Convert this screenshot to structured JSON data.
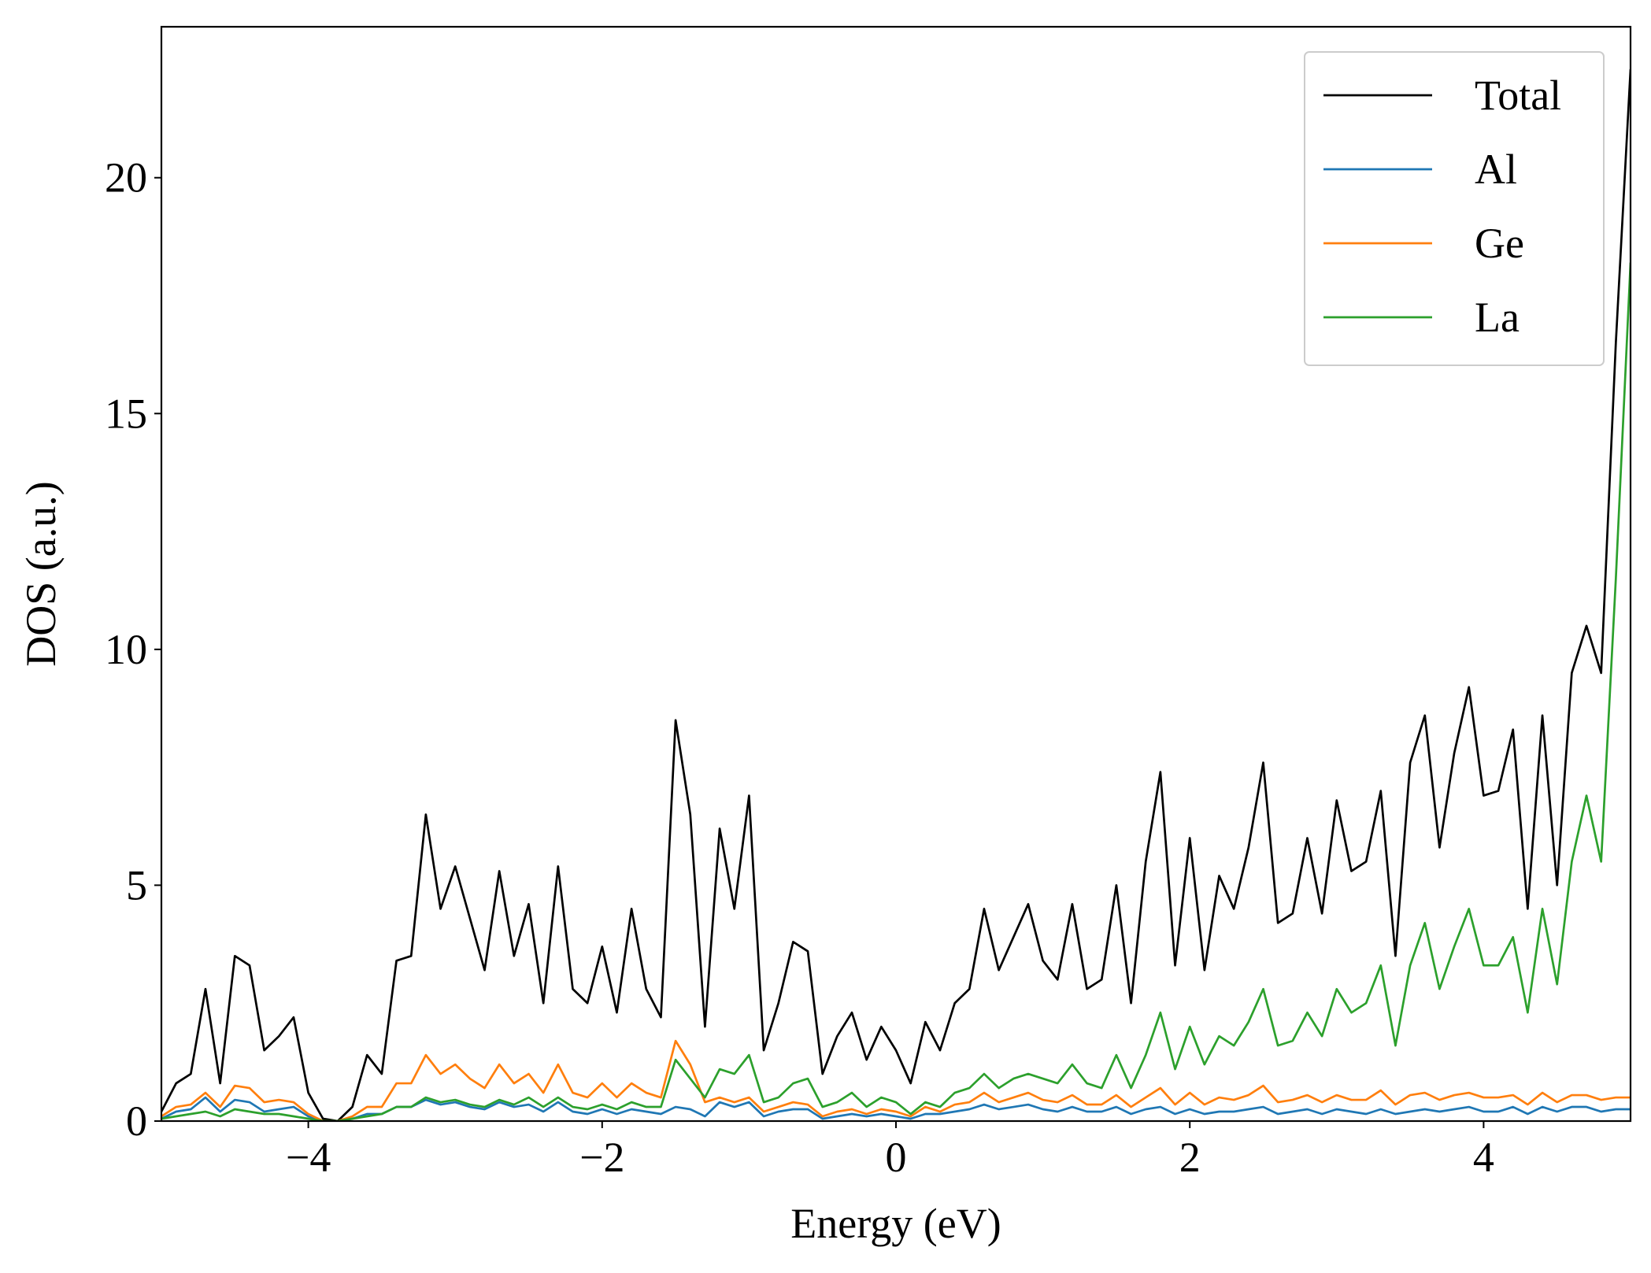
{
  "chart_data": {
    "type": "line",
    "xlabel": "Energy (eV)",
    "ylabel": "DOS (a.u.)",
    "xlim": [
      -5,
      5
    ],
    "ylim": [
      0,
      23.2
    ],
    "xticks": [
      {
        "value": -4,
        "label": "−4"
      },
      {
        "value": -2,
        "label": "−2"
      },
      0,
      2,
      4
    ],
    "yticks": [
      0,
      5,
      10,
      15,
      20
    ],
    "legend": "upper right",
    "grid": false,
    "x": [
      -5,
      -4.9,
      -4.8,
      -4.7,
      -4.6,
      -4.5,
      -4.4,
      -4.3,
      -4.2,
      -4.1,
      -4,
      -3.9,
      -3.8,
      -3.7,
      -3.6,
      -3.5,
      -3.4,
      -3.3,
      -3.2,
      -3.1,
      -3,
      -2.9,
      -2.8,
      -2.7,
      -2.6,
      -2.5,
      -2.4,
      -2.3,
      -2.2,
      -2.1,
      -2,
      -1.9,
      -1.8,
      -1.7,
      -1.6,
      -1.5,
      -1.4,
      -1.3,
      -1.2,
      -1.1,
      -1,
      -0.9,
      -0.8,
      -0.7,
      -0.6,
      -0.5,
      -0.4,
      -0.3,
      -0.2,
      -0.1,
      0,
      0.1,
      0.2,
      0.3,
      0.4,
      0.5,
      0.6,
      0.7,
      0.8,
      0.9,
      1,
      1.1,
      1.2,
      1.3,
      1.4,
      1.5,
      1.6,
      1.7,
      1.8,
      1.9,
      2,
      2.1,
      2.2,
      2.3,
      2.4,
      2.5,
      2.6,
      2.7,
      2.8,
      2.9,
      3,
      3.1,
      3.2,
      3.3,
      3.4,
      3.5,
      3.6,
      3.7,
      3.8,
      3.9,
      4,
      4.1,
      4.2,
      4.3,
      4.4,
      4.5,
      4.6,
      4.7,
      4.8,
      4.9,
      5
    ],
    "series": [
      {
        "name": "Total",
        "color": "#000000",
        "values": [
          0.2,
          0.8,
          1.0,
          2.8,
          0.8,
          3.5,
          3.3,
          1.5,
          1.8,
          2.2,
          0.6,
          0.05,
          0,
          0.3,
          1.4,
          1.0,
          3.4,
          3.5,
          6.5,
          4.5,
          5.4,
          4.3,
          3.2,
          5.3,
          3.5,
          4.6,
          2.5,
          5.4,
          2.8,
          2.5,
          3.7,
          2.3,
          4.5,
          2.8,
          2.2,
          8.5,
          6.5,
          2.0,
          6.2,
          4.5,
          6.9,
          1.5,
          2.5,
          3.8,
          3.6,
          1.0,
          1.8,
          2.3,
          1.3,
          2.0,
          1.5,
          0.8,
          2.1,
          1.5,
          2.5,
          2.8,
          4.5,
          3.2,
          3.9,
          4.6,
          3.4,
          3.0,
          4.6,
          2.8,
          3.0,
          5.0,
          2.5,
          5.5,
          7.4,
          3.3,
          6.0,
          3.2,
          5.2,
          4.5,
          5.8,
          7.6,
          4.2,
          4.4,
          6.0,
          4.4,
          6.8,
          5.3,
          5.5,
          7.0,
          3.5,
          7.6,
          8.6,
          5.8,
          7.8,
          9.2,
          6.9,
          7.0,
          8.3,
          4.5,
          8.6,
          5.0,
          9.5,
          10.5,
          9.5,
          16.5,
          22.3
        ]
      },
      {
        "name": "Al",
        "color": "#1f77b4",
        "values": [
          0.05,
          0.2,
          0.25,
          0.5,
          0.2,
          0.45,
          0.4,
          0.2,
          0.25,
          0.3,
          0.1,
          0,
          0,
          0.05,
          0.15,
          0.15,
          0.3,
          0.3,
          0.45,
          0.35,
          0.4,
          0.3,
          0.25,
          0.4,
          0.3,
          0.35,
          0.2,
          0.4,
          0.2,
          0.15,
          0.25,
          0.15,
          0.25,
          0.2,
          0.15,
          0.3,
          0.25,
          0.1,
          0.4,
          0.3,
          0.4,
          0.1,
          0.2,
          0.25,
          0.25,
          0.05,
          0.1,
          0.15,
          0.1,
          0.15,
          0.1,
          0.05,
          0.15,
          0.15,
          0.2,
          0.25,
          0.35,
          0.25,
          0.3,
          0.35,
          0.25,
          0.2,
          0.3,
          0.2,
          0.2,
          0.3,
          0.15,
          0.25,
          0.3,
          0.15,
          0.25,
          0.15,
          0.2,
          0.2,
          0.25,
          0.3,
          0.15,
          0.2,
          0.25,
          0.15,
          0.25,
          0.2,
          0.15,
          0.25,
          0.15,
          0.2,
          0.25,
          0.2,
          0.25,
          0.3,
          0.2,
          0.2,
          0.3,
          0.15,
          0.3,
          0.2,
          0.3,
          0.3,
          0.2,
          0.25,
          0.25
        ]
      },
      {
        "name": "Ge",
        "color": "#ff7f0e",
        "values": [
          0.1,
          0.3,
          0.35,
          0.6,
          0.3,
          0.75,
          0.7,
          0.4,
          0.45,
          0.4,
          0.15,
          0,
          0,
          0.1,
          0.3,
          0.3,
          0.8,
          0.8,
          1.4,
          1.0,
          1.2,
          0.9,
          0.7,
          1.2,
          0.8,
          1.0,
          0.6,
          1.2,
          0.6,
          0.5,
          0.8,
          0.5,
          0.8,
          0.6,
          0.5,
          1.7,
          1.2,
          0.4,
          0.5,
          0.4,
          0.5,
          0.2,
          0.3,
          0.4,
          0.35,
          0.1,
          0.2,
          0.25,
          0.15,
          0.25,
          0.2,
          0.1,
          0.3,
          0.2,
          0.35,
          0.4,
          0.6,
          0.4,
          0.5,
          0.6,
          0.45,
          0.4,
          0.55,
          0.35,
          0.35,
          0.55,
          0.3,
          0.5,
          0.7,
          0.35,
          0.6,
          0.35,
          0.5,
          0.45,
          0.55,
          0.75,
          0.4,
          0.45,
          0.55,
          0.4,
          0.55,
          0.45,
          0.45,
          0.65,
          0.35,
          0.55,
          0.6,
          0.45,
          0.55,
          0.6,
          0.5,
          0.5,
          0.55,
          0.35,
          0.6,
          0.4,
          0.55,
          0.55,
          0.45,
          0.5,
          0.5
        ]
      },
      {
        "name": "La",
        "color": "#2ca02c",
        "values": [
          0.05,
          0.1,
          0.15,
          0.2,
          0.1,
          0.25,
          0.2,
          0.15,
          0.15,
          0.1,
          0.05,
          0,
          0,
          0.05,
          0.1,
          0.15,
          0.3,
          0.3,
          0.5,
          0.4,
          0.45,
          0.35,
          0.3,
          0.45,
          0.35,
          0.5,
          0.3,
          0.5,
          0.3,
          0.25,
          0.35,
          0.25,
          0.4,
          0.3,
          0.3,
          1.3,
          0.9,
          0.5,
          1.1,
          1.0,
          1.4,
          0.4,
          0.5,
          0.8,
          0.9,
          0.3,
          0.4,
          0.6,
          0.3,
          0.5,
          0.4,
          0.15,
          0.4,
          0.3,
          0.6,
          0.7,
          1.0,
          0.7,
          0.9,
          1.0,
          0.9,
          0.8,
          1.2,
          0.8,
          0.7,
          1.4,
          0.7,
          1.4,
          2.3,
          1.1,
          2.0,
          1.2,
          1.8,
          1.6,
          2.1,
          2.8,
          1.6,
          1.7,
          2.3,
          1.8,
          2.8,
          2.3,
          2.5,
          3.3,
          1.6,
          3.3,
          4.2,
          2.8,
          3.7,
          4.5,
          3.3,
          3.3,
          3.9,
          2.3,
          4.5,
          2.9,
          5.5,
          6.9,
          5.5,
          11.5,
          18.2
        ]
      }
    ]
  }
}
